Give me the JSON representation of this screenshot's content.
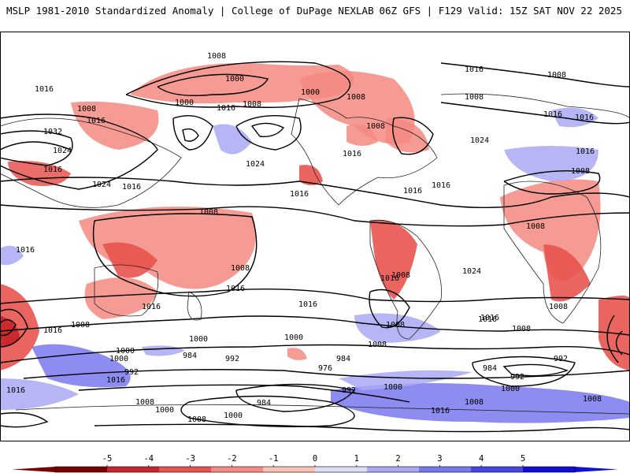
{
  "header": {
    "left_title": "MSLP 1981-2010 Standardized Anomaly | College of DuPage NEXLAB",
    "right_title": "06Z GFS | F129 Valid: 15Z SAT NOV 22 2025"
  },
  "colors": {
    "land_outline": "#222222",
    "contour": "#000000",
    "neg_scale": [
      "#7a0000",
      "#c8262a",
      "#e8534f",
      "#f48a80",
      "#fbc2b6"
    ],
    "pos_scale": [
      "#dcdcfb",
      "#a9a9f6",
      "#7878ee",
      "#4545e4",
      "#0f0fd8"
    ]
  },
  "map": {
    "contour_labels": [
      "1008",
      "1000",
      "1016",
      "1008",
      "1000",
      "1016",
      "1008",
      "1016",
      "1000",
      "1008",
      "1016",
      "1008",
      "1016",
      "1032",
      "1024",
      "1024",
      "1024",
      "1016",
      "1024",
      "1016",
      "1016",
      "1016",
      "1008",
      "1008",
      "1008",
      "1016",
      "1016",
      "1016",
      "1016",
      "1016",
      "1008",
      "1008",
      "1016",
      "1008",
      "1016",
      "1016",
      "1008",
      "1016",
      "1008",
      "1024",
      "1016",
      "1008",
      "1000",
      "1016",
      "1008",
      "1000",
      "992",
      "1016",
      "984",
      "992",
      "1000",
      "1000",
      "984",
      "976",
      "992",
      "1008",
      "1000",
      "984",
      "1008",
      "1000",
      "1008",
      "1016",
      "1000",
      "1008",
      "1016",
      "1008",
      "992",
      "984",
      "992",
      "1000",
      "1008",
      "1016"
    ]
  },
  "colorbar": {
    "ticks": [
      "-5",
      "-4",
      "-3",
      "-2",
      "-1",
      "0",
      "1",
      "2",
      "3",
      "4",
      "5"
    ]
  }
}
